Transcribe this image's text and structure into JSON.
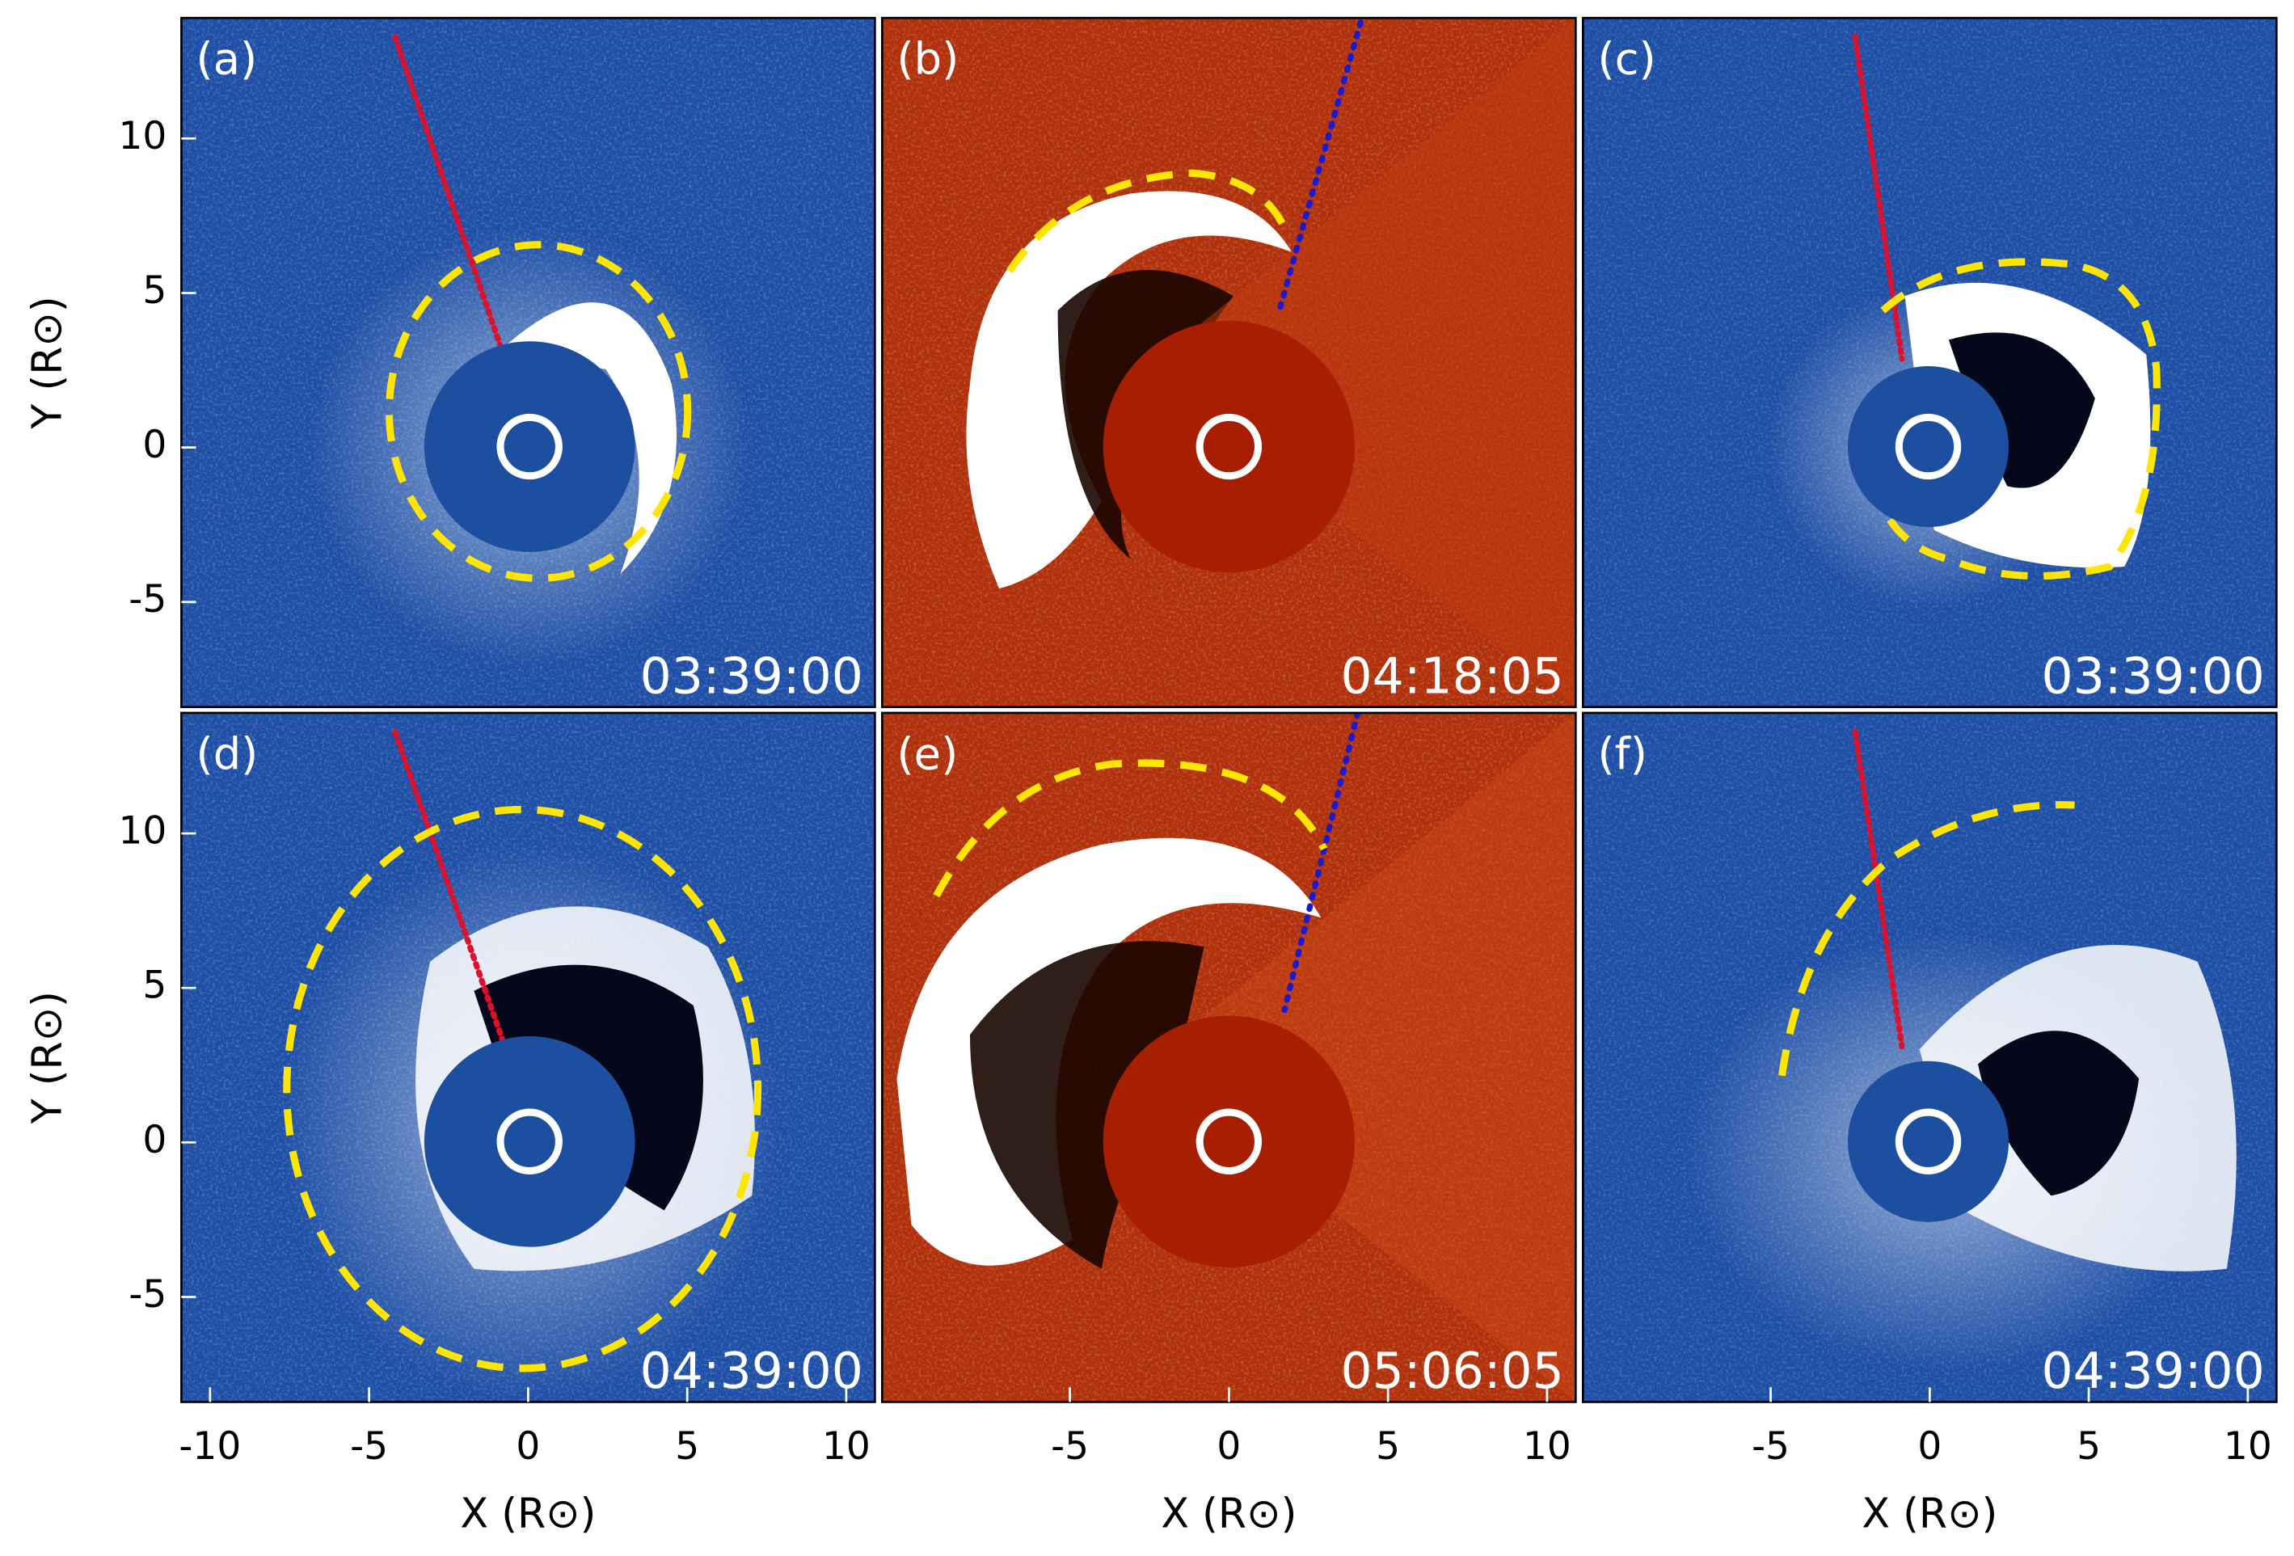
{
  "chart_data": [
    {
      "type": "image",
      "label": "(a)",
      "time": "03:39:00",
      "color": "#1e4fa6",
      "xlim": [
        -10.9,
        10.9
      ],
      "ylim": [
        -8.4,
        13.9
      ],
      "yticks": [
        -5,
        0,
        5,
        10
      ],
      "ylabel": "Y (R⊙)"
    },
    {
      "type": "image",
      "label": "(b)",
      "time": "04:18:05",
      "color": "#b0300a",
      "xlim": [
        -10.9,
        10.9
      ],
      "ylim": [
        -8.4,
        13.9
      ]
    },
    {
      "type": "image",
      "label": "(c)",
      "time": "03:39:00",
      "color": "#1e4fa6",
      "xlim": [
        -10.9,
        10.9
      ],
      "ylim": [
        -8.4,
        13.9
      ]
    },
    {
      "type": "image",
      "label": "(d)",
      "time": "04:39:00",
      "color": "#1e4fa6",
      "xlim": [
        -10.9,
        10.9
      ],
      "ylim": [
        -8.4,
        13.9
      ],
      "xticks": [
        -10,
        -5,
        0,
        5,
        10
      ],
      "yticks": [
        -5,
        0,
        5,
        10
      ],
      "xlabel": "X (R⊙)",
      "ylabel": "Y (R⊙)"
    },
    {
      "type": "image",
      "label": "(e)",
      "time": "05:06:05",
      "color": "#b0300a",
      "xlim": [
        -10.9,
        10.9
      ],
      "ylim": [
        -8.4,
        13.9
      ],
      "xticks": [
        -5,
        0,
        5,
        10
      ],
      "xlabel": "X (R⊙)"
    },
    {
      "type": "image",
      "label": "(f)",
      "time": "04:39:00",
      "color": "#1e4fa6",
      "xlim": [
        -10.9,
        10.9
      ],
      "ylim": [
        -8.4,
        13.9
      ],
      "xticks": [
        -5,
        0,
        5,
        10
      ],
      "xlabel": "X (R⊙)"
    }
  ]
}
